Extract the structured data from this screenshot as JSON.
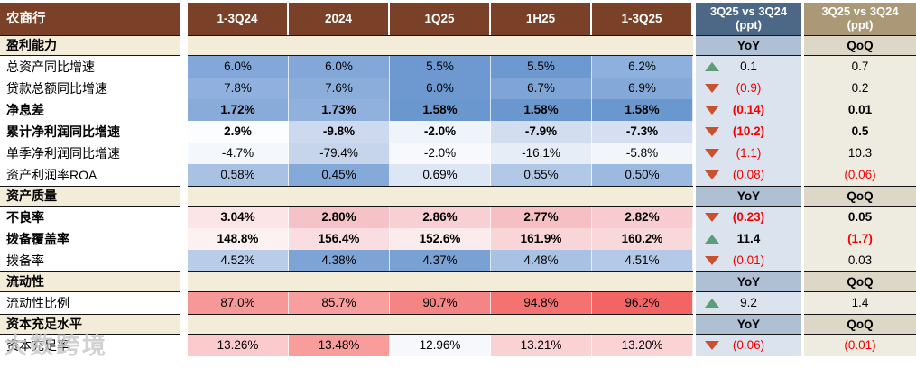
{
  "colors": {
    "header_brown": "#7a4128",
    "header_slate": "#4d6787",
    "header_tan": "#aa9876",
    "yoy_subheader_bg": "#afbfd4",
    "qoq_subheader_bg": "#ddd7c8",
    "yoy_cell_bg": "#dbe3ee",
    "qoq_cell_bg": "#eeebe1",
    "section_bg": "#f3ecd9",
    "up_triangle": "#5e9c7a",
    "down_triangle": "#c9512e",
    "negative_text": "#f40000"
  },
  "watermark": {
    "text": "大数跨境"
  },
  "chart_data": {
    "type": "table",
    "title": "农商行",
    "period_columns": [
      "1-3Q24",
      "2024",
      "1Q25",
      "1H25",
      "1-3Q25"
    ],
    "compare_columns": [
      {
        "title": "3Q25 vs 3Q24",
        "unit": "(ppt)",
        "sub": "YoY"
      },
      {
        "title": "3Q25 vs 3Q24",
        "unit": "(ppt)",
        "sub": "QoQ"
      }
    ],
    "sections": [
      {
        "label": "盈利能力",
        "rows": [
          {
            "label": "总资产同比增速",
            "bold": false,
            "values": [
              "6.0%",
              "6.0%",
              "5.5%",
              "5.5%",
              "6.2%"
            ],
            "cell_colors": [
              "#82a7d8",
              "#82a7d8",
              "#6e99d0",
              "#6e99d0",
              "#8db0dc"
            ],
            "yoy": {
              "value": "0.1",
              "direction": "up",
              "negative": false
            },
            "qoq": {
              "value": "0.7",
              "negative": false
            }
          },
          {
            "label": "贷款总额同比增速",
            "bold": false,
            "values": [
              "7.8%",
              "7.6%",
              "6.0%",
              "6.7%",
              "6.9%"
            ],
            "cell_colors": [
              "#90b1dd",
              "#8badda",
              "#6e99d0",
              "#7ea5d6",
              "#84a9d9"
            ],
            "yoy": {
              "value": "(0.9)",
              "direction": "down",
              "negative": true
            },
            "qoq": {
              "value": "0.2",
              "negative": false
            }
          },
          {
            "label": "净息差",
            "bold": true,
            "values": [
              "1.72%",
              "1.73%",
              "1.58%",
              "1.58%",
              "1.58%"
            ],
            "cell_colors": [
              "#88abda",
              "#90b1dd",
              "#6b97cf",
              "#6b97cf",
              "#6b97cf"
            ],
            "yoy": {
              "value": "(0.14)",
              "direction": "down",
              "negative": true
            },
            "qoq": {
              "value": "0.01",
              "negative": false
            }
          },
          {
            "label": "累计净利润同比增速",
            "bold": true,
            "values": [
              "2.9%",
              "-9.8%",
              "-2.0%",
              "-7.9%",
              "-7.3%"
            ],
            "cell_colors": [
              "#fcfdfe",
              "#ccd9ee",
              "#eff3fa",
              "#d3ddf0",
              "#d5dff1"
            ],
            "yoy": {
              "value": "(10.2)",
              "direction": "down",
              "negative": true
            },
            "qoq": {
              "value": "0.5",
              "negative": false
            }
          },
          {
            "label": "单季净利润同比增速",
            "bold": false,
            "values": [
              "-4.7%",
              "-79.4%",
              "-2.0%",
              "-16.1%",
              "-5.8%"
            ],
            "cell_colors": [
              "#f4f7fb",
              "#c7d5ec",
              "#f7f9fc",
              "#e7edf7",
              "#f2f5fa"
            ],
            "yoy": {
              "value": "(1.1)",
              "direction": "down",
              "negative": true
            },
            "qoq": {
              "value": "10.3",
              "negative": false
            }
          },
          {
            "label": "资产利润率ROA",
            "bold": false,
            "values": [
              "0.58%",
              "0.45%",
              "0.69%",
              "0.55%",
              "0.50%"
            ],
            "cell_colors": [
              "#a9c2e4",
              "#85a9d9",
              "#dde6f4",
              "#b2c8e7",
              "#9cbadf"
            ],
            "yoy": {
              "value": "(0.08)",
              "direction": "down",
              "negative": true
            },
            "qoq": {
              "value": "(0.06)",
              "negative": true
            }
          }
        ]
      },
      {
        "label": "资产质量",
        "rows": [
          {
            "label": "不良率",
            "bold": true,
            "values": [
              "3.04%",
              "2.80%",
              "2.86%",
              "2.77%",
              "2.82%"
            ],
            "cell_colors": [
              "#fce5e7",
              "#f5c2c7",
              "#f8cfd3",
              "#f5bfc4",
              "#f7cbcf"
            ],
            "yoy": {
              "value": "(0.23)",
              "direction": "down",
              "negative": true
            },
            "qoq": {
              "value": "0.05",
              "negative": false
            }
          },
          {
            "label": "拨备覆盖率",
            "bold": true,
            "values": [
              "148.8%",
              "156.4%",
              "152.6%",
              "161.9%",
              "160.2%"
            ],
            "cell_colors": [
              "#fdf1f2",
              "#fadde0",
              "#fcebec",
              "#f9d5d8",
              "#f9d8db"
            ],
            "yoy": {
              "value": "11.4",
              "direction": "up",
              "negative": false
            },
            "qoq": {
              "value": "(1.7)",
              "negative": true
            }
          },
          {
            "label": "拨备率",
            "bold": false,
            "values": [
              "4.52%",
              "4.38%",
              "4.37%",
              "4.48%",
              "4.51%"
            ],
            "cell_colors": [
              "#b9cde9",
              "#7ea4d5",
              "#7aa1d4",
              "#a9c2e4",
              "#b3c9e7"
            ],
            "yoy": {
              "value": "(0.01)",
              "direction": "down",
              "negative": true
            },
            "qoq": {
              "value": "0.03",
              "negative": false
            }
          }
        ]
      },
      {
        "label": "流动性",
        "rows": [
          {
            "label": "流动性比例",
            "bold": false,
            "values": [
              "87.0%",
              "85.7%",
              "90.7%",
              "94.8%",
              "96.2%"
            ],
            "cell_colors": [
              "#f79898",
              "#f89e9e",
              "#f58484",
              "#f47272",
              "#f36565"
            ],
            "yoy": {
              "value": "9.2",
              "direction": "up",
              "negative": false
            },
            "qoq": {
              "value": "1.4",
              "negative": false
            }
          }
        ]
      },
      {
        "label": "资本充足水平",
        "rows": [
          {
            "label": "资本充足率",
            "bold": false,
            "values": [
              "13.26%",
              "13.48%",
              "12.96%",
              "13.21%",
              "13.20%"
            ],
            "cell_colors": [
              "#fbcacc",
              "#f89c9c",
              "#f6f8fc",
              "#fbd2d4",
              "#fbd3d5"
            ],
            "yoy": {
              "value": "(0.06)",
              "direction": "down",
              "negative": true
            },
            "qoq": {
              "value": "(0.01)",
              "negative": true
            }
          }
        ]
      }
    ]
  }
}
